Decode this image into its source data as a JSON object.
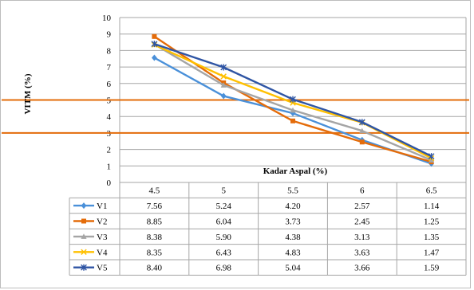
{
  "chart_data": {
    "type": "line",
    "title": "",
    "xlabel": "Kadar Aspal (%)",
    "ylabel": "VITM (%)",
    "ylim": [
      0,
      10
    ],
    "yticks": [
      "0",
      "1",
      "2",
      "3",
      "4",
      "5",
      "6",
      "7",
      "8",
      "9",
      "10"
    ],
    "categories": [
      "4.5",
      "5",
      "5.5",
      "6",
      "6.5"
    ],
    "grid": true,
    "legend": "data-table",
    "reference_lines": [
      {
        "y": 5,
        "color": "#E36C0A"
      },
      {
        "y": 3,
        "color": "#E36C0A"
      }
    ],
    "series": [
      {
        "name": "V1",
        "color": "#4A90D9",
        "marker": "diamond",
        "values": [
          7.56,
          5.24,
          4.2,
          2.57,
          1.14
        ],
        "labels": [
          "7.56",
          "5.24",
          "4.20",
          "2.57",
          "1.14"
        ]
      },
      {
        "name": "V2",
        "color": "#E46C0A",
        "marker": "square",
        "values": [
          8.85,
          6.04,
          3.73,
          2.45,
          1.25
        ],
        "labels": [
          "8.85",
          "6.04",
          "3.73",
          "2.45",
          "1.25"
        ]
      },
      {
        "name": "V3",
        "color": "#A5A5A5",
        "marker": "triangle",
        "values": [
          8.38,
          5.9,
          4.38,
          3.13,
          1.35
        ],
        "labels": [
          "8.38",
          "5.90",
          "4.38",
          "3.13",
          "1.35"
        ]
      },
      {
        "name": "V4",
        "color": "#FFC000",
        "marker": "x",
        "values": [
          8.35,
          6.43,
          4.83,
          3.63,
          1.47
        ],
        "labels": [
          "8.35",
          "6.43",
          "4.83",
          "3.63",
          "1.47"
        ]
      },
      {
        "name": "V5",
        "color": "#2F55A4",
        "marker": "star",
        "values": [
          8.4,
          6.98,
          5.04,
          3.66,
          1.59
        ],
        "labels": [
          "8.40",
          "6.98",
          "5.04",
          "3.66",
          "1.59"
        ]
      }
    ]
  }
}
